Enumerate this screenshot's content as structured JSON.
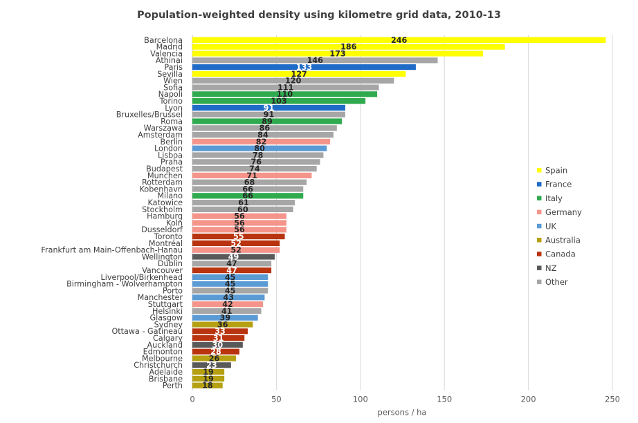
{
  "chart_data": {
    "type": "bar",
    "orientation": "horizontal",
    "title": "Population-weighted density using kilometre grid data, 2010-13",
    "xlabel": "persons / ha",
    "xlim": [
      0,
      250
    ],
    "xticks": [
      0,
      50,
      100,
      150,
      200,
      250
    ],
    "grid": true,
    "legend_position": "right",
    "groups": [
      {
        "name": "Spain",
        "color": "#FFFF00"
      },
      {
        "name": "France",
        "color": "#1F6CC8"
      },
      {
        "name": "Italy",
        "color": "#2FAA4F"
      },
      {
        "name": "Germany",
        "color": "#F4948A"
      },
      {
        "name": "UK",
        "color": "#5B9BD5"
      },
      {
        "name": "Australia",
        "color": "#B5A012"
      },
      {
        "name": "Canada",
        "color": "#B8330E"
      },
      {
        "name": "NZ",
        "color": "#595959"
      },
      {
        "name": "Other",
        "color": "#A6A6A6"
      }
    ],
    "bars": [
      {
        "city": "Barcelona",
        "value": 246,
        "group": "Spain"
      },
      {
        "city": "Madrid",
        "value": 186,
        "group": "Spain"
      },
      {
        "city": "Valencia",
        "value": 173,
        "group": "Spain"
      },
      {
        "city": "Athinai",
        "value": 146,
        "group": "Other"
      },
      {
        "city": "Paris",
        "value": 133,
        "group": "France"
      },
      {
        "city": "Sevilla",
        "value": 127,
        "group": "Spain"
      },
      {
        "city": "Wien",
        "value": 120,
        "group": "Other"
      },
      {
        "city": "Sofia",
        "value": 111,
        "group": "Other"
      },
      {
        "city": "Napoli",
        "value": 110,
        "group": "Italy"
      },
      {
        "city": "Torino",
        "value": 103,
        "group": "Italy"
      },
      {
        "city": "Lyon",
        "value": 91,
        "group": "France"
      },
      {
        "city": "Bruxelles/Brussel",
        "value": 91,
        "group": "Other"
      },
      {
        "city": "Roma",
        "value": 89,
        "group": "Italy"
      },
      {
        "city": "Warszawa",
        "value": 86,
        "group": "Other"
      },
      {
        "city": "Amsterdam",
        "value": 84,
        "group": "Other"
      },
      {
        "city": "Berlin",
        "value": 82,
        "group": "Germany"
      },
      {
        "city": "London",
        "value": 80,
        "group": "UK"
      },
      {
        "city": "Lisboa",
        "value": 78,
        "group": "Other"
      },
      {
        "city": "Praha",
        "value": 76,
        "group": "Other"
      },
      {
        "city": "Budapest",
        "value": 74,
        "group": "Other"
      },
      {
        "city": "Munchen",
        "value": 71,
        "group": "Germany"
      },
      {
        "city": "Rotterdam",
        "value": 68,
        "group": "Other"
      },
      {
        "city": "Kobenhavn",
        "value": 66,
        "group": "Other"
      },
      {
        "city": "Milano",
        "value": 66,
        "group": "Italy"
      },
      {
        "city": "Katowice",
        "value": 61,
        "group": "Other"
      },
      {
        "city": "Stockholm",
        "value": 60,
        "group": "Other"
      },
      {
        "city": "Hamburg",
        "value": 56,
        "group": "Germany"
      },
      {
        "city": "Koln",
        "value": 56,
        "group": "Germany"
      },
      {
        "city": "Dusseldorf",
        "value": 56,
        "group": "Germany"
      },
      {
        "city": "Toronto",
        "value": 55,
        "group": "Canada"
      },
      {
        "city": "Montréal",
        "value": 52,
        "group": "Canada"
      },
      {
        "city": "Frankfurt am Main-Offenbach-Hanau",
        "value": 52,
        "group": "Germany"
      },
      {
        "city": "Wellington",
        "value": 49,
        "group": "NZ"
      },
      {
        "city": "Dublin",
        "value": 47,
        "group": "Other"
      },
      {
        "city": "Vancouver",
        "value": 47,
        "group": "Canada"
      },
      {
        "city": "Liverpool/Birkenhead",
        "value": 45,
        "group": "UK"
      },
      {
        "city": "Birmingham - Wolverhampton",
        "value": 45,
        "group": "UK"
      },
      {
        "city": "Porto",
        "value": 45,
        "group": "Other"
      },
      {
        "city": "Manchester",
        "value": 43,
        "group": "UK"
      },
      {
        "city": "Stuttgart",
        "value": 42,
        "group": "Germany"
      },
      {
        "city": "Helsinki",
        "value": 41,
        "group": "Other"
      },
      {
        "city": "Glasgow",
        "value": 39,
        "group": "UK"
      },
      {
        "city": "Sydney",
        "value": 36,
        "group": "Australia"
      },
      {
        "city": "Ottawa - Gatineau",
        "value": 33,
        "group": "Canada"
      },
      {
        "city": "Calgary",
        "value": 31,
        "group": "Canada"
      },
      {
        "city": "Auckland",
        "value": 30,
        "group": "NZ"
      },
      {
        "city": "Edmonton",
        "value": 28,
        "group": "Canada"
      },
      {
        "city": "Melbourne",
        "value": 26,
        "group": "Australia"
      },
      {
        "city": "Christchurch",
        "value": 23,
        "group": "NZ"
      },
      {
        "city": "Adelaide",
        "value": 19,
        "group": "Australia"
      },
      {
        "city": "Brisbane",
        "value": 19,
        "group": "Australia"
      },
      {
        "city": "Perth",
        "value": 18,
        "group": "Australia"
      }
    ]
  }
}
